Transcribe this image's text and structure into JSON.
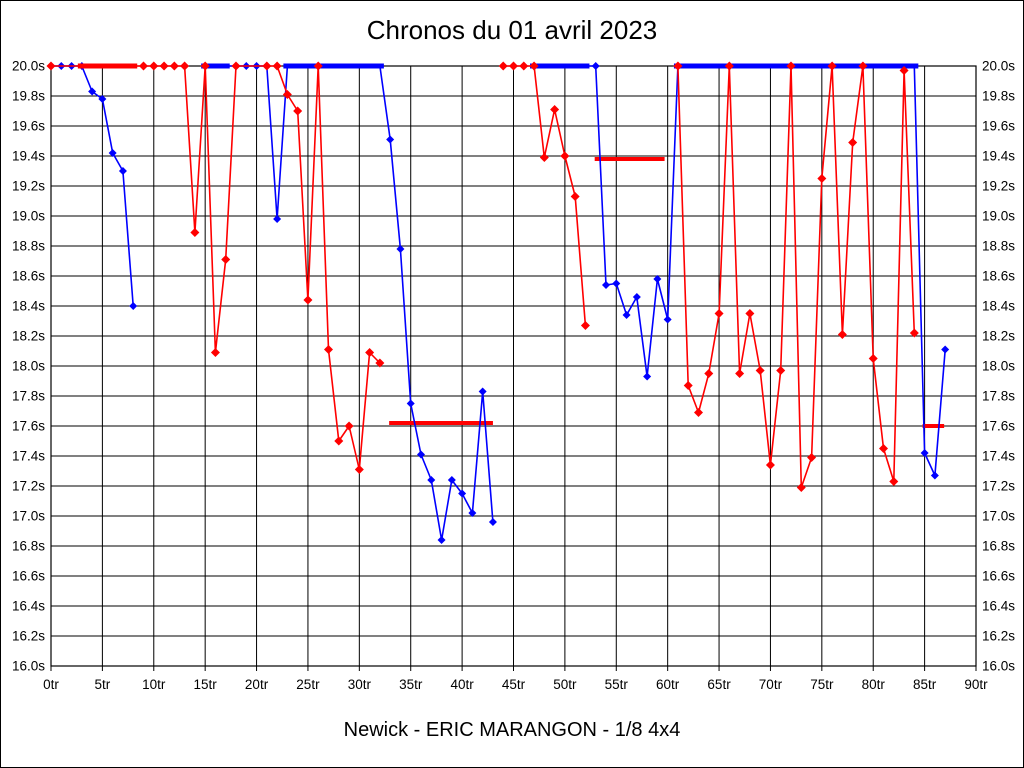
{
  "window": {
    "title": "Chronos du 01 avril 2023",
    "footer": "Newick - ERIC MARANGON - 1/8 4x4"
  },
  "colors": {
    "red_series": "#ff0000",
    "blue_series": "#0000ff",
    "grid": "#000000",
    "background": "#ffffff"
  },
  "chart_data": {
    "type": "line",
    "title": "Chronos du 01 avril 2023",
    "footer": "Newick - ERIC MARANGON - 1/8 4x4",
    "xlabel": "",
    "ylabel": "",
    "xlim": [
      0,
      90
    ],
    "ylim": [
      16.0,
      20.0
    ],
    "clip_max": 20.0,
    "grid": true,
    "x_unit": "tr",
    "y_unit": "s",
    "x_tick_values": [
      0,
      5,
      10,
      15,
      20,
      25,
      30,
      35,
      40,
      45,
      50,
      55,
      60,
      65,
      70,
      75,
      80,
      85,
      90
    ],
    "x_tick_labels": [
      "0tr",
      "5tr",
      "10tr",
      "15tr",
      "20tr",
      "25tr",
      "30tr",
      "35tr",
      "40tr",
      "45tr",
      "50tr",
      "55tr",
      "60tr",
      "65tr",
      "70tr",
      "75tr",
      "80tr",
      "85tr",
      "90tr"
    ],
    "y_tick_values": [
      20.0,
      19.8,
      19.6,
      19.4,
      19.2,
      19.0,
      18.8,
      18.6,
      18.4,
      18.2,
      18.0,
      17.8,
      17.6,
      17.4,
      17.2,
      17.0,
      16.8,
      16.6,
      16.4,
      16.2,
      16.0
    ],
    "y_tick_labels": [
      "20.0s",
      "19.8s",
      "19.6s",
      "19.4s",
      "19.2s",
      "19.0s",
      "18.8s",
      "18.6s",
      "18.4s",
      "18.2s",
      "18.0s",
      "17.8s",
      "17.6s",
      "17.4s",
      "17.2s",
      "17.0s",
      "16.8s",
      "16.6s",
      "16.4s",
      "16.2s",
      "16.0s"
    ],
    "series": [
      {
        "name": "series-blue",
        "color": "#0000ff",
        "cap_runs": [
          [
            15,
            17
          ],
          [
            23,
            32
          ],
          [
            47,
            52
          ],
          [
            61,
            84
          ]
        ],
        "heats": [
          [
            [
              0,
              20
            ],
            [
              1,
              20
            ],
            [
              2,
              20
            ],
            [
              3,
              20
            ],
            [
              4,
              19.83
            ],
            [
              5,
              19.78
            ],
            [
              6,
              19.42
            ],
            [
              7,
              19.3
            ],
            [
              8,
              18.4
            ]
          ],
          [
            [
              15,
              20
            ],
            [
              16,
              20
            ],
            [
              17,
              20
            ],
            [
              18,
              20
            ],
            [
              19,
              20
            ],
            [
              20,
              20
            ],
            [
              21,
              20
            ],
            [
              22,
              18.98
            ],
            [
              23,
              20
            ],
            [
              24,
              20
            ],
            [
              25,
              20
            ],
            [
              26,
              20
            ],
            [
              27,
              20
            ],
            [
              28,
              20
            ],
            [
              29,
              20
            ],
            [
              30,
              20
            ],
            [
              31,
              20
            ],
            [
              32,
              20
            ],
            [
              33,
              19.51
            ],
            [
              34,
              18.78
            ],
            [
              35,
              17.75
            ],
            [
              36,
              17.41
            ],
            [
              37,
              17.24
            ],
            [
              38,
              16.84
            ],
            [
              39,
              17.24
            ],
            [
              40,
              17.15
            ],
            [
              41,
              17.02
            ],
            [
              42,
              17.83
            ],
            [
              43,
              16.96
            ]
          ],
          [
            [
              47,
              20
            ],
            [
              48,
              20
            ],
            [
              49,
              20
            ],
            [
              50,
              20
            ],
            [
              51,
              20
            ],
            [
              52,
              20
            ],
            [
              53,
              20
            ],
            [
              54,
              18.54
            ],
            [
              55,
              18.55
            ],
            [
              56,
              18.34
            ],
            [
              57,
              18.46
            ],
            [
              58,
              17.93
            ],
            [
              59,
              18.58
            ],
            [
              60,
              18.31
            ],
            [
              61,
              20
            ],
            [
              62,
              20
            ],
            [
              63,
              20
            ],
            [
              64,
              20
            ],
            [
              65,
              20
            ],
            [
              66,
              20
            ],
            [
              67,
              20
            ],
            [
              68,
              20
            ],
            [
              69,
              20
            ],
            [
              70,
              20
            ],
            [
              71,
              20
            ],
            [
              72,
              20
            ],
            [
              73,
              20
            ],
            [
              74,
              20
            ],
            [
              75,
              20
            ],
            [
              76,
              20
            ],
            [
              77,
              20
            ],
            [
              78,
              20
            ],
            [
              79,
              20
            ],
            [
              80,
              20
            ],
            [
              81,
              20
            ],
            [
              82,
              20
            ],
            [
              83,
              20
            ],
            [
              84,
              20
            ],
            [
              85,
              17.42
            ],
            [
              86,
              17.27
            ],
            [
              87,
              18.11
            ]
          ]
        ]
      },
      {
        "name": "series-red",
        "color": "#ff0000",
        "cap_runs": [
          [
            3,
            8
          ]
        ],
        "heats": [
          [
            [
              0,
              20
            ],
            [
              3,
              20
            ],
            [
              4,
              20
            ],
            [
              5,
              20
            ],
            [
              6,
              20
            ],
            [
              7,
              20
            ],
            [
              8,
              20
            ],
            [
              9,
              20
            ],
            [
              10,
              20
            ],
            [
              11,
              20
            ],
            [
              12,
              20
            ],
            [
              13,
              20
            ],
            [
              14,
              18.89
            ],
            [
              15,
              20
            ],
            [
              16,
              18.09
            ],
            [
              17,
              18.71
            ],
            [
              18,
              20
            ],
            [
              21,
              20
            ],
            [
              22,
              20
            ],
            [
              23,
              19.81
            ],
            [
              24,
              19.7
            ],
            [
              25,
              18.44
            ],
            [
              26,
              20
            ],
            [
              27,
              18.11
            ],
            [
              28,
              17.5
            ],
            [
              29,
              17.6
            ],
            [
              30,
              17.31
            ],
            [
              31,
              18.09
            ],
            [
              32,
              18.02
            ]
          ],
          [
            [
              44,
              20
            ],
            [
              45,
              20
            ],
            [
              46,
              20
            ],
            [
              47,
              20
            ],
            [
              48,
              19.39
            ],
            [
              49,
              19.71
            ],
            [
              50,
              19.4
            ],
            [
              51,
              19.13
            ],
            [
              52,
              18.27
            ]
          ],
          [
            [
              61,
              20
            ],
            [
              62,
              17.87
            ],
            [
              63,
              17.69
            ],
            [
              64,
              17.95
            ],
            [
              65,
              18.35
            ],
            [
              66,
              20
            ],
            [
              67,
              17.95
            ],
            [
              68,
              18.35
            ],
            [
              69,
              17.97
            ],
            [
              70,
              17.34
            ],
            [
              71,
              17.97
            ],
            [
              72,
              20
            ],
            [
              73,
              17.19
            ],
            [
              74,
              17.39
            ],
            [
              75,
              19.25
            ],
            [
              76,
              20
            ],
            [
              77,
              18.21
            ],
            [
              78,
              19.49
            ],
            [
              79,
              20
            ],
            [
              80,
              18.05
            ],
            [
              81,
              17.45
            ],
            [
              82,
              17.23
            ],
            [
              83,
              19.97
            ],
            [
              84,
              18.22
            ]
          ]
        ]
      }
    ],
    "avg_segments": [
      {
        "color": "#ff0000",
        "lap_start": 32.9,
        "lap_end": 43.0,
        "time": 17.62
      },
      {
        "color": "#ff0000",
        "lap_start": 52.9,
        "lap_end": 59.7,
        "time": 19.38
      },
      {
        "color": "#ff0000",
        "lap_start": 84.8,
        "lap_end": 86.9,
        "time": 17.6
      }
    ]
  }
}
